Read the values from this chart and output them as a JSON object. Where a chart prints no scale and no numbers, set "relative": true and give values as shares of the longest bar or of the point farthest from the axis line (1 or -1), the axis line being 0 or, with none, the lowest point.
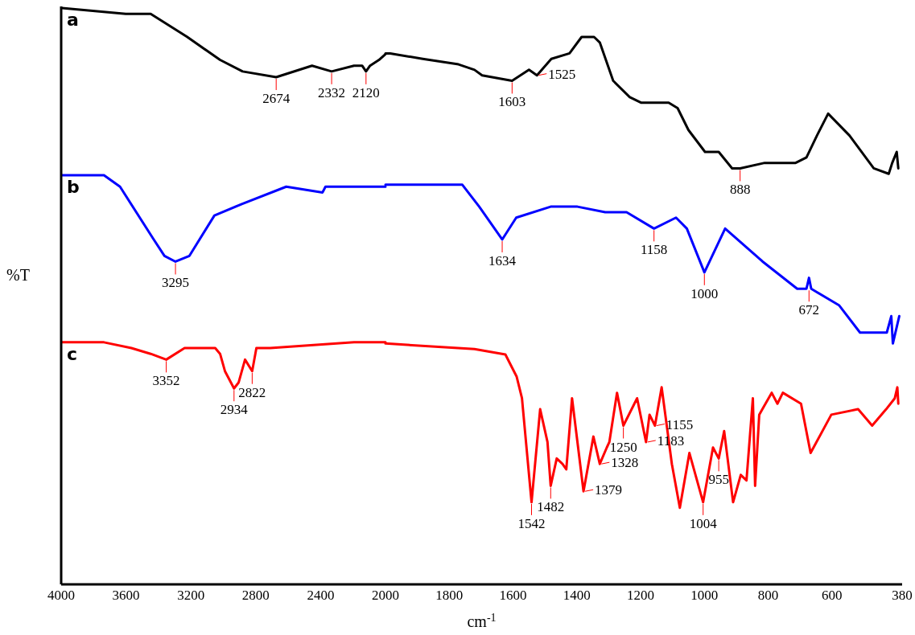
{
  "chart_data": [
    {
      "type": "line",
      "relative": true,
      "ylabel": "%T",
      "xlim": [
        4000,
        2000
      ],
      "xticks": [
        4000,
        3600,
        3200,
        2800,
        2400,
        2000
      ],
      "grid": false,
      "marker": "none",
      "line_style": "solid",
      "series": [
        {
          "name": "a",
          "color": "#000000",
          "x": [
            3995,
            3602,
            3448,
            3224,
            3020,
            2881,
            2674,
            2453,
            2332,
            2194,
            2144,
            2120,
            2095,
            2040,
            2000
          ],
          "values": [
            1.0,
            0.99,
            0.99,
            0.95,
            0.91,
            0.89,
            0.88,
            0.9,
            0.89,
            0.9,
            0.9,
            0.89,
            0.9,
            0.91,
            0.92
          ]
        },
        {
          "name": "b",
          "color": "#0000ff",
          "x": [
            3995,
            3736,
            3637,
            3433,
            3363,
            3295,
            3209,
            3055,
            2886,
            2612,
            2388,
            2370,
            2304,
            2030,
            2000
          ],
          "values": [
            0.71,
            0.71,
            0.69,
            0.6,
            0.57,
            0.56,
            0.57,
            0.64,
            0.66,
            0.69,
            0.68,
            0.69,
            0.69,
            0.69,
            0.69
          ]
        },
        {
          "name": "c",
          "color": "#ff0000",
          "x": [
            3995,
            3736,
            3567,
            3448,
            3352,
            3239,
            3050,
            3020,
            2990,
            2934,
            2906,
            2866,
            2822,
            2796,
            2711,
            2194,
            2000
          ],
          "values": [
            0.42,
            0.42,
            0.41,
            0.4,
            0.39,
            0.41,
            0.41,
            0.4,
            0.37,
            0.34,
            0.35,
            0.39,
            0.37,
            0.41,
            0.41,
            0.42,
            0.42
          ]
        }
      ],
      "annotations": [
        {
          "text": "2674",
          "x": 2674,
          "y": 0.88
        },
        {
          "text": "2332",
          "x": 2332,
          "y": 0.89
        },
        {
          "text": "2120",
          "x": 2120,
          "y": 0.89
        },
        {
          "text": "3295",
          "x": 3295,
          "y": 0.56
        },
        {
          "text": "3352",
          "x": 3352,
          "y": 0.39
        },
        {
          "text": "2934",
          "x": 2934,
          "y": 0.34
        },
        {
          "text": "2822",
          "x": 2822,
          "y": 0.37
        }
      ]
    },
    {
      "type": "line",
      "relative": true,
      "xlabel": "cm$^{-1}$",
      "xlim": [
        2000,
        380
      ],
      "xticks": [
        1800,
        1600,
        1400,
        1200,
        1000,
        800,
        600,
        380
      ],
      "grid": false,
      "marker": "none",
      "line_style": "solid",
      "series": [
        {
          "color": "#000000",
          "x": [
            2000,
            1985,
            1883,
            1771,
            1721,
            1697,
            1603,
            1550,
            1525,
            1480,
            1423,
            1385,
            1346,
            1328,
            1286,
            1234,
            1199,
            1112,
            1084,
            1050,
            998,
            955,
            913,
            888,
            811,
            714,
            680,
            647,
            612,
            545,
            469,
            422,
            411,
            397,
            392
          ],
          "values": [
            0.97,
            0.97,
            0.96,
            0.95,
            0.94,
            0.93,
            0.92,
            0.94,
            0.93,
            0.96,
            0.97,
            1.0,
            1.0,
            0.99,
            0.92,
            0.89,
            0.88,
            0.88,
            0.87,
            0.83,
            0.79,
            0.79,
            0.76,
            0.76,
            0.77,
            0.77,
            0.78,
            0.82,
            0.86,
            0.82,
            0.76,
            0.75,
            0.77,
            0.79,
            0.76
          ]
        },
        {
          "color": "#0000ff",
          "x": [
            2000,
            1759,
            1706,
            1634,
            1590,
            1482,
            1398,
            1311,
            1244,
            1158,
            1089,
            1055,
            1000,
            935,
            818,
            709,
            680,
            672,
            665,
            578,
            512,
            428,
            414,
            409,
            389
          ],
          "values": [
            0.73,
            0.73,
            0.69,
            0.63,
            0.67,
            0.69,
            0.69,
            0.68,
            0.68,
            0.65,
            0.67,
            0.65,
            0.57,
            0.65,
            0.59,
            0.54,
            0.54,
            0.56,
            0.54,
            0.51,
            0.46,
            0.46,
            0.49,
            0.44,
            0.49
          ]
        },
        {
          "color": "#ff0000",
          "x": [
            2000,
            1721,
            1624,
            1589,
            1572,
            1542,
            1515,
            1492,
            1482,
            1463,
            1445,
            1433,
            1415,
            1379,
            1348,
            1328,
            1306,
            1298,
            1274,
            1254,
            1211,
            1183,
            1172,
            1155,
            1134,
            1102,
            1077,
            1047,
            1004,
            973,
            955,
            938,
            910,
            886,
            868,
            848,
            841,
            828,
            789,
            771,
            754,
            697,
            667,
            602,
            518,
            474,
            430,
            403,
            395,
            392
          ],
          "values": [
            0.44,
            0.43,
            0.42,
            0.38,
            0.34,
            0.15,
            0.32,
            0.26,
            0.18,
            0.23,
            0.22,
            0.21,
            0.34,
            0.17,
            0.27,
            0.22,
            0.25,
            0.26,
            0.35,
            0.29,
            0.34,
            0.26,
            0.31,
            0.29,
            0.36,
            0.22,
            0.14,
            0.24,
            0.15,
            0.25,
            0.23,
            0.28,
            0.15,
            0.2,
            0.19,
            0.34,
            0.18,
            0.31,
            0.35,
            0.33,
            0.35,
            0.33,
            0.24,
            0.31,
            0.32,
            0.29,
            0.32,
            0.34,
            0.36,
            0.33
          ]
        }
      ],
      "annotations": [
        {
          "text": "1603",
          "x": 1603,
          "y": 0.92
        },
        {
          "text": "1525",
          "x": 1525,
          "y": 0.93
        },
        {
          "text": "888",
          "x": 888,
          "y": 0.76
        },
        {
          "text": "1634",
          "x": 1634,
          "y": 0.63
        },
        {
          "text": "1158",
          "x": 1158,
          "y": 0.65
        },
        {
          "text": "1000",
          "x": 1000,
          "y": 0.57
        },
        {
          "text": "672",
          "x": 672,
          "y": 0.54
        },
        {
          "text": "1542",
          "x": 1542,
          "y": 0.15
        },
        {
          "text": "1482",
          "x": 1482,
          "y": 0.18
        },
        {
          "text": "1379",
          "x": 1379,
          "y": 0.17
        },
        {
          "text": "1328",
          "x": 1328,
          "y": 0.22
        },
        {
          "text": "1250",
          "x": 1254,
          "y": 0.29
        },
        {
          "text": "1183",
          "x": 1183,
          "y": 0.26
        },
        {
          "text": "1155",
          "x": 1155,
          "y": 0.29
        },
        {
          "text": "1004",
          "x": 1004,
          "y": 0.15
        },
        {
          "text": "955",
          "x": 955,
          "y": 0.23
        }
      ]
    }
  ]
}
